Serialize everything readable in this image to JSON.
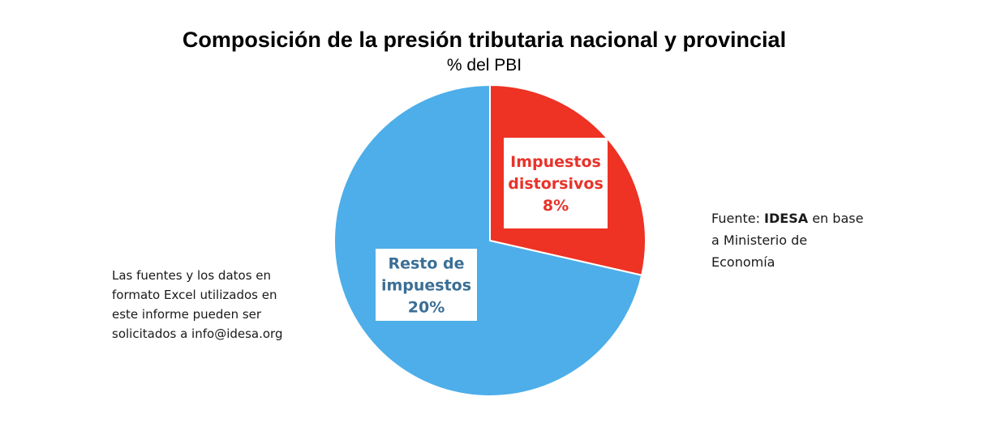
{
  "chart_data": {
    "type": "pie",
    "title": "Composición de la presión tributaria nacional y provincial",
    "subtitle": "% del PBI",
    "slices": [
      {
        "label_lines": [
          "Impuestos",
          "distorsivos",
          "8%"
        ],
        "value": 8,
        "unit": "%",
        "color": "#ee3224",
        "label_color": "#e8332a"
      },
      {
        "label_lines": [
          "Resto de",
          "impuestos",
          "20%"
        ],
        "value": 20,
        "unit": "%",
        "color": "#4daee9",
        "label_color": "#3a6e95"
      }
    ],
    "legend": "none"
  },
  "notes": {
    "left": "Las fuentes y los datos en formato Excel utilizados en este informe pueden ser solicitados a info@idesa.org",
    "source_prefix": "Fuente: ",
    "source_brand": "IDESA",
    "source_suffix": " en base a Ministerio de Economía"
  }
}
